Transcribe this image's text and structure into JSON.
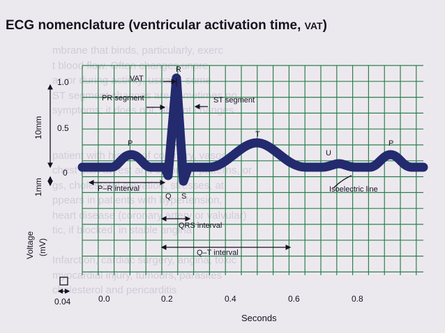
{
  "title": {
    "main": "ECG nomenclature (ventricular activation time, ",
    "abbr": "VAT",
    "close": ")"
  },
  "background_lines": [
    "mbrane that binds, particularly, exerc",
    "t blood flow. Often changes unpre",
    "ar, or during activity, usually, some",
    "ST segment changes are sometimes no",
    "symptoms; it does not, absent changes",
    "",
    "",
    "patient with history of coronary, vasospa",
    "chest pain at rest and coronary patterns, or",
    "gs, cholesterol elevation, stresses, at",
    "ppears in patients with hypertension,",
    "heart disease (coronary artery or valvular)",
    "tic, if blocked, in stable angina",
    "",
    "Infarction, cardiac surgery, angina, toxic",
    "myocardial injury, tumours, parasites",
    "cholesterol and pericarditis"
  ],
  "y_axis": {
    "ticks": [
      "1.0",
      "0.5",
      "0"
    ],
    "mm_label": "10mm",
    "small_label": "1mm",
    "title_line1": "Voltage",
    "title_line2": "(mV)"
  },
  "x_axis": {
    "ticks": [
      "0.0",
      "0.2",
      "0.4",
      "0.6",
      "0.8"
    ],
    "small_box_label": "0.04",
    "title": "Seconds"
  },
  "annotations": {
    "vat": "VAT",
    "r": "R",
    "pr_segment": "PR segment",
    "st_segment": "ST segment",
    "p1": "P",
    "t": "T",
    "u": "U",
    "p2": "P",
    "q": "Q",
    "s": "S",
    "pr_interval": "P–R interval",
    "isoelectric": "Isoelectric line",
    "qrs_interval": "QRS interval",
    "qt_interval": "Q–T interval"
  },
  "colors": {
    "background": "#ece9ee",
    "grid": "#2d7f50",
    "trace": "#232a6e",
    "ink": "#141221"
  }
}
